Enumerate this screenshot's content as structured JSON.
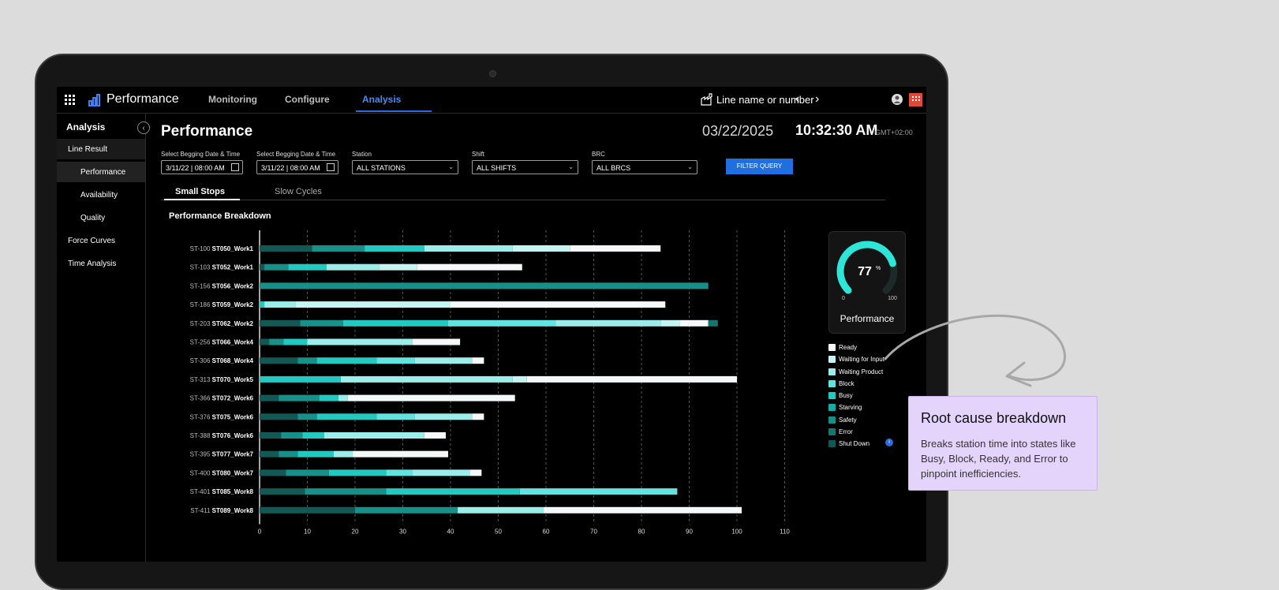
{
  "header": {
    "app_title": "Performance",
    "tabs": [
      {
        "label": "Monitoring"
      },
      {
        "label": "Configure"
      },
      {
        "label": "Analysis"
      }
    ],
    "line_selector": "Line name or number"
  },
  "sidebar": {
    "title": "Analysis",
    "items": [
      {
        "label": "Line Result"
      },
      {
        "label": "Performance"
      },
      {
        "label": "Availability"
      },
      {
        "label": "Quality"
      },
      {
        "label": "Force Curves"
      },
      {
        "label": "Time Analysis"
      }
    ]
  },
  "main": {
    "page_title": "Performance",
    "date": "03/22/2025",
    "time": "10:32:30 AM",
    "timezone": "GMT+02:00",
    "filters": {
      "start_label": "Select Begging Date & Time",
      "start_value": "3/11/22 | 08:00 AM",
      "end_label": "Select Begging Date & Time",
      "end_value": "3/11/22 | 08:00 AM",
      "station_label": "Station",
      "station_value": "ALL STATIONS",
      "shift_label": "Shift",
      "shift_value": "ALL SHIFTS",
      "brc_label": "BRC",
      "brc_value": "ALL BRCS",
      "button": "FILTER QUERY"
    },
    "subtabs": [
      {
        "label": "Small Stops"
      },
      {
        "label": "Slow Cycles"
      }
    ],
    "section_title": "Performance Breakdown"
  },
  "gauge": {
    "value": 77,
    "value_text": "77",
    "unit": "%",
    "min": "0",
    "max": "100",
    "label": "Performance"
  },
  "legend": [
    {
      "label": "Ready",
      "color": "#f4f8f8"
    },
    {
      "label": "Waiting for Input",
      "color": "#c5f5f3"
    },
    {
      "label": "Waiting Product",
      "color": "#9aede9"
    },
    {
      "label": "Block",
      "color": "#63e3df"
    },
    {
      "label": "Busy",
      "color": "#21c9c1"
    },
    {
      "label": "Starving",
      "color": "#12aea7"
    },
    {
      "label": "Safety",
      "color": "#17908a"
    },
    {
      "label": "Error",
      "color": "#157570"
    },
    {
      "label": "Shut Down",
      "color": "#125955"
    }
  ],
  "chart_data": {
    "type": "bar",
    "orientation": "horizontal",
    "stacked": true,
    "title": "Performance Breakdown",
    "xlim": [
      0,
      110
    ],
    "xticks": [
      0,
      10,
      20,
      30,
      40,
      50,
      60,
      70,
      80,
      90,
      100,
      110
    ],
    "categories": [
      {
        "code": "ST-100",
        "name": "ST050_Work1"
      },
      {
        "code": "ST-103",
        "name": "ST052_Work1"
      },
      {
        "code": "ST-156",
        "name": "ST056_Work2"
      },
      {
        "code": "ST-186",
        "name": "ST059_Work2"
      },
      {
        "code": "ST-203",
        "name": "ST062_Work2"
      },
      {
        "code": "ST-256",
        "name": "ST066_Work4"
      },
      {
        "code": "ST-306",
        "name": "ST068_Work4"
      },
      {
        "code": "ST-313",
        "name": "ST070_Work5"
      },
      {
        "code": "ST-366",
        "name": "ST072_Work6"
      },
      {
        "code": "ST-376",
        "name": "ST075_Work6"
      },
      {
        "code": "ST-388",
        "name": "ST076_Work6"
      },
      {
        "code": "ST-395",
        "name": "ST077_Work7"
      },
      {
        "code": "ST-400",
        "name": "ST080_Work7"
      },
      {
        "code": "ST-401",
        "name": "ST085_Work8"
      },
      {
        "code": "ST-411",
        "name": "ST089_Work8"
      }
    ],
    "segments": [
      [
        {
          "s": "Shut Down",
          "v": 11
        },
        {
          "s": "Safety",
          "v": 11
        },
        {
          "s": "Busy",
          "v": 12.5
        },
        {
          "s": "Waiting Product",
          "v": 18.5
        },
        {
          "s": "Waiting for Input",
          "v": 12
        },
        {
          "s": "Ready",
          "v": 19
        }
      ],
      [
        {
          "s": "Shut Down",
          "v": 1
        },
        {
          "s": "Safety",
          "v": 5
        },
        {
          "s": "Busy",
          "v": 8
        },
        {
          "s": "Waiting Product",
          "v": 11
        },
        {
          "s": "Waiting for Input",
          "v": 8
        },
        {
          "s": "Ready",
          "v": 22
        }
      ],
      [
        {
          "s": "Safety",
          "v": 94
        }
      ],
      [
        {
          "s": "Busy",
          "v": 1
        },
        {
          "s": "Waiting Product",
          "v": 6.5
        },
        {
          "s": "Waiting for Input",
          "v": 32.5
        },
        {
          "s": "Ready",
          "v": 45
        }
      ],
      [
        {
          "s": "Shut Down",
          "v": 8.5
        },
        {
          "s": "Safety",
          "v": 9
        },
        {
          "s": "Busy",
          "v": 22
        },
        {
          "s": "Block",
          "v": 22.5
        },
        {
          "s": "Waiting Product",
          "v": 22
        },
        {
          "s": "Waiting for Input",
          "v": 4
        },
        {
          "s": "Ready",
          "v": 6
        },
        {
          "s": "Error",
          "v": 2
        }
      ],
      [
        {
          "s": "Shut Down",
          "v": 2
        },
        {
          "s": "Safety",
          "v": 3
        },
        {
          "s": "Busy",
          "v": 5
        },
        {
          "s": "Waiting Product",
          "v": 22
        },
        {
          "s": "Ready",
          "v": 10
        }
      ],
      [
        {
          "s": "Shut Down",
          "v": 8
        },
        {
          "s": "Safety",
          "v": 4
        },
        {
          "s": "Busy",
          "v": 12.5
        },
        {
          "s": "Block",
          "v": 8
        },
        {
          "s": "Waiting Product",
          "v": 12
        },
        {
          "s": "Ready",
          "v": 2.5
        }
      ],
      [
        {
          "s": "Busy",
          "v": 17
        },
        {
          "s": "Waiting Product",
          "v": 36
        },
        {
          "s": "Waiting for Input",
          "v": 3
        },
        {
          "s": "Ready",
          "v": 44
        }
      ],
      [
        {
          "s": "Shut Down",
          "v": 4
        },
        {
          "s": "Safety",
          "v": 8.5
        },
        {
          "s": "Busy",
          "v": 4
        },
        {
          "s": "Waiting Product",
          "v": 2
        },
        {
          "s": "Ready",
          "v": 35
        }
      ],
      [
        {
          "s": "Shut Down",
          "v": 8
        },
        {
          "s": "Safety",
          "v": 4
        },
        {
          "s": "Busy",
          "v": 12.5
        },
        {
          "s": "Block",
          "v": 8
        },
        {
          "s": "Waiting Product",
          "v": 12
        },
        {
          "s": "Ready",
          "v": 2.5
        }
      ],
      [
        {
          "s": "Shut Down",
          "v": 4.5
        },
        {
          "s": "Safety",
          "v": 4.5
        },
        {
          "s": "Busy",
          "v": 4.5
        },
        {
          "s": "Waiting Product",
          "v": 21
        },
        {
          "s": "Ready",
          "v": 4.5
        }
      ],
      [
        {
          "s": "Shut Down",
          "v": 4
        },
        {
          "s": "Safety",
          "v": 4
        },
        {
          "s": "Busy",
          "v": 7.5
        },
        {
          "s": "Waiting Product",
          "v": 4
        },
        {
          "s": "Ready",
          "v": 20
        }
      ],
      [
        {
          "s": "Shut Down",
          "v": 5.5
        },
        {
          "s": "Safety",
          "v": 9
        },
        {
          "s": "Busy",
          "v": 12
        },
        {
          "s": "Block",
          "v": 5.5
        },
        {
          "s": "Waiting Product",
          "v": 12
        },
        {
          "s": "Ready",
          "v": 2.5
        }
      ],
      [
        {
          "s": "Shut Down",
          "v": 9.5
        },
        {
          "s": "Safety",
          "v": 17
        },
        {
          "s": "Busy",
          "v": 28
        },
        {
          "s": "Block",
          "v": 33
        }
      ],
      [
        {
          "s": "Shut Down",
          "v": 20
        },
        {
          "s": "Safety",
          "v": 21.5
        },
        {
          "s": "Waiting Product",
          "v": 18
        },
        {
          "s": "Ready",
          "v": 41.5
        }
      ]
    ]
  },
  "annotation": {
    "title": "Root cause breakdown",
    "body": "Breaks station time into states like Busy, Block, Ready, and Error to pinpoint inefficiencies."
  }
}
